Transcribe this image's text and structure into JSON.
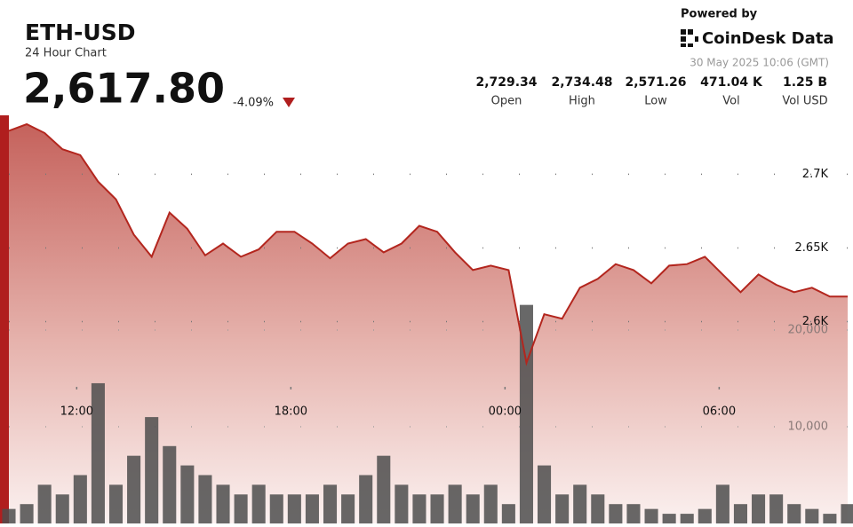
{
  "header": {
    "title": "ETH-USD",
    "subtitle": "24 Hour Chart",
    "price": "2,617.80",
    "change": "-4.09%",
    "powered_by": "Powered by",
    "brand": "CoinDesk Data",
    "timestamp": "30 May 2025 10:06 (GMT)",
    "stats": [
      {
        "value": "2,729.34",
        "label": "Open"
      },
      {
        "value": "2,734.48",
        "label": "High"
      },
      {
        "value": "2,571.26",
        "label": "Low"
      },
      {
        "value": "471.04 K",
        "label": "Vol"
      },
      {
        "value": "1.25 B",
        "label": "Vol USD"
      }
    ]
  },
  "chart_data": [
    {
      "type": "area",
      "color": "#b3261e",
      "x": [
        10.1,
        10.6,
        11.1,
        11.6,
        12.1,
        12.6,
        13.1,
        13.6,
        14.1,
        14.6,
        15.1,
        15.6,
        16.1,
        16.6,
        17.1,
        17.6,
        18.1,
        18.6,
        19.1,
        19.6,
        20.1,
        20.6,
        21.1,
        21.6,
        22.1,
        22.6,
        23.1,
        23.6,
        24.1,
        24.6,
        25.1,
        25.6,
        26.1,
        26.6,
        27.1,
        27.6,
        28.1,
        28.6,
        29.1,
        29.6,
        30.1,
        30.6,
        31.1,
        31.6,
        32.1,
        32.6,
        33.1,
        33.6
      ],
      "values": [
        2729.5,
        2734,
        2728,
        2717,
        2713,
        2695,
        2683,
        2659,
        2644,
        2674,
        2663,
        2645,
        2653,
        2644,
        2649,
        2661,
        2661,
        2653,
        2643,
        2653,
        2656,
        2647,
        2653,
        2665,
        2661,
        2647,
        2635,
        2638,
        2635,
        2572,
        2605,
        2602,
        2623,
        2629,
        2639,
        2635,
        2626,
        2638,
        2639,
        2644,
        2632,
        2620,
        2632,
        2625,
        2620,
        2623,
        2617,
        2617
      ],
      "xlim": [
        10.1,
        33.75
      ],
      "ylim": [
        2463,
        2740
      ],
      "xticks": [
        {
          "value": 12,
          "label": "12:00"
        },
        {
          "value": 18,
          "label": "18:00"
        },
        {
          "value": 24,
          "label": "00:00"
        },
        {
          "value": 30,
          "label": "06:00"
        }
      ],
      "yticks": [
        {
          "value": 2600,
          "label": "2.6K"
        },
        {
          "value": 2650,
          "label": "2.65K"
        },
        {
          "value": 2700,
          "label": "2.7K"
        }
      ],
      "grid": true
    },
    {
      "type": "bar",
      "color": "#4d4d4d",
      "x": [
        10.1,
        10.6,
        11.1,
        11.6,
        12.1,
        12.6,
        13.1,
        13.6,
        14.1,
        14.6,
        15.1,
        15.6,
        16.1,
        16.6,
        17.1,
        17.6,
        18.1,
        18.6,
        19.1,
        19.6,
        20.1,
        20.6,
        21.1,
        21.6,
        22.1,
        22.6,
        23.1,
        23.6,
        24.1,
        24.6,
        25.1,
        25.6,
        26.1,
        26.6,
        27.1,
        27.6,
        28.1,
        28.6,
        29.1,
        29.6,
        30.1,
        30.6,
        31.1,
        31.6,
        32.1,
        32.6,
        33.1,
        33.6
      ],
      "values": [
        1500,
        2000,
        4000,
        3000,
        5000,
        14500,
        4000,
        7000,
        11000,
        8000,
        6000,
        5000,
        4000,
        3000,
        4000,
        3000,
        3000,
        3000,
        4000,
        3000,
        5000,
        7000,
        4000,
        3000,
        3000,
        4000,
        3000,
        4000,
        2000,
        22600,
        6000,
        3000,
        4000,
        3000,
        2000,
        2000,
        1500,
        1000,
        1000,
        1500,
        4000,
        2000,
        3000,
        3000,
        2000,
        1500,
        1000,
        2000
      ],
      "xlim": [
        10.1,
        33.75
      ],
      "ylim": [
        0,
        42200
      ],
      "yticks": [
        {
          "value": 10000,
          "label": "10,000"
        },
        {
          "value": 20000,
          "label": "20,000"
        }
      ]
    }
  ]
}
